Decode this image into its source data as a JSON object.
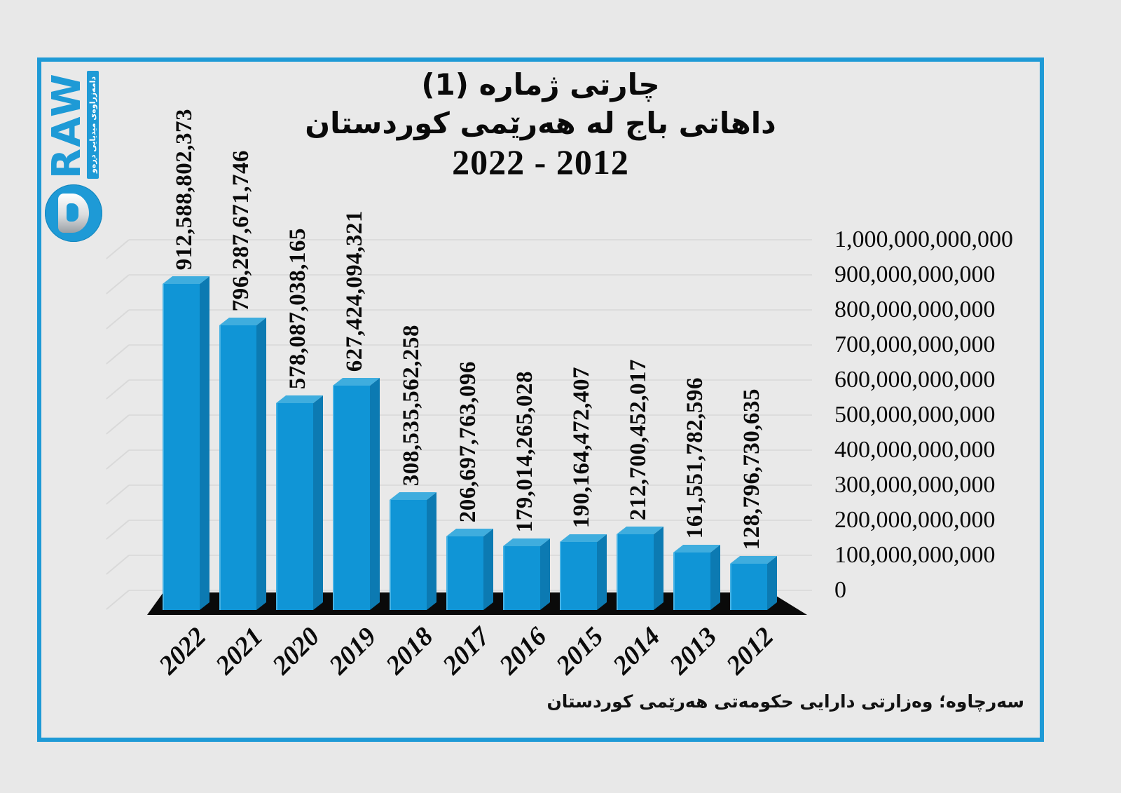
{
  "frame": {
    "border_color": "#1e9ad6",
    "background": "#e9e9e9"
  },
  "logo": {
    "word": "RAW",
    "letter": "D",
    "tagline": "دامەزراوەی میدیایی دڕەو",
    "color": "#1e9ad6"
  },
  "title": {
    "line1": "چارتی ژمارە (1)",
    "line2": "داهاتی باج لە هەرێمی کوردستان",
    "line3": "2022 - 2012"
  },
  "source": "سەرچاوە؛ وەزارتی دارایی حکومەتی هەرێمی کوردستان",
  "chart_data": {
    "type": "bar",
    "title": "داهاتی باج لە هەرێمی کوردستان 2012-2022",
    "categories": [
      "2022",
      "2021",
      "2020",
      "2019",
      "2018",
      "2017",
      "2016",
      "2015",
      "2014",
      "2013",
      "2012"
    ],
    "values": [
      912588802373,
      796287671746,
      578087038165,
      627424094321,
      308535562258,
      206697763096,
      179014265028,
      190164472407,
      212700452017,
      161551782596,
      128796730635
    ],
    "value_labels": [
      "912,588,802,373",
      "796,287,671,746",
      "578,087,038,165",
      "627,424,094,321",
      "308,535,562,258",
      "206,697,763,096",
      "179,014,265,028",
      "190,164,472,407",
      "212,700,452,017",
      "161,551,782,596",
      "128,796,730,635"
    ],
    "y_ticks": [
      "1,000,000,000,000",
      "900,000,000,000",
      "800,000,000,000",
      "700,000,000,000",
      "600,000,000,000",
      "500,000,000,000",
      "400,000,000,000",
      "300,000,000,000",
      "200,000,000,000",
      "100,000,000,000",
      "0"
    ],
    "ylim": [
      0,
      1000000000000
    ],
    "xlabel": "",
    "ylabel": "",
    "grid": true,
    "axis_labels_position": "right",
    "bar_color": "#1095d6",
    "bar_top_color": "#3fadde",
    "bar_side_color": "#0c7ab2",
    "base_color": "#0a0a0a",
    "style": "3d"
  }
}
